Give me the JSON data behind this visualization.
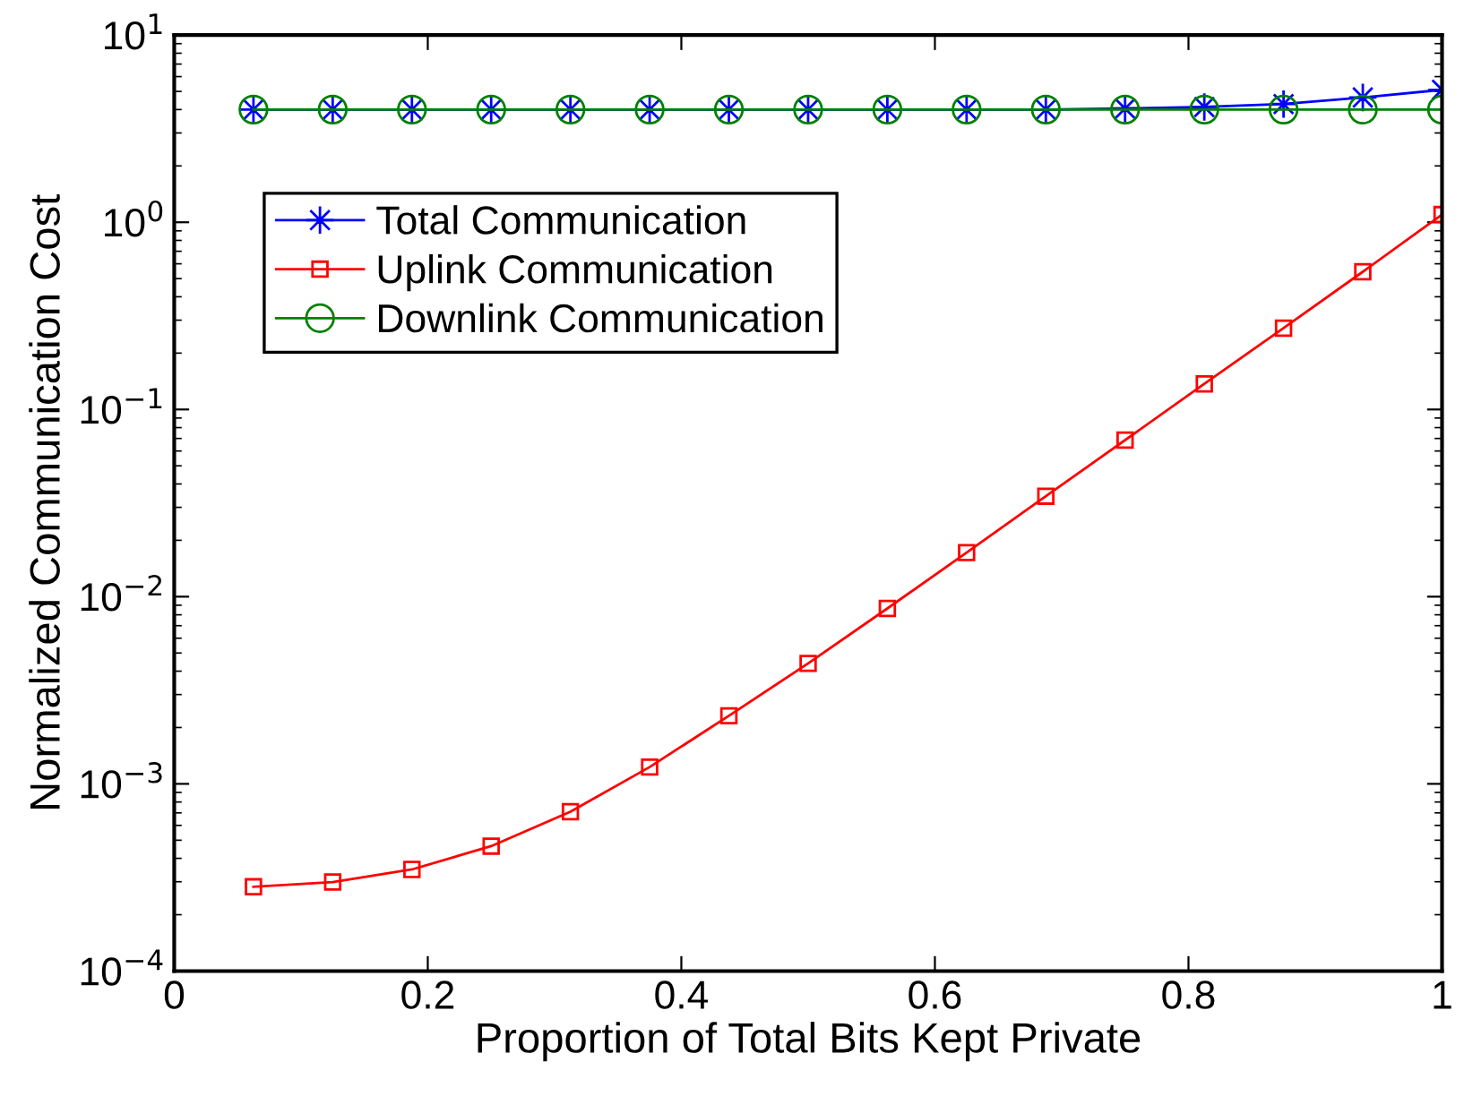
{
  "chart_data": {
    "type": "line",
    "xlabel": "Proportion of Total Bits Kept Private",
    "ylabel": "Normalized Communication Cost",
    "x": [
      0.0625,
      0.125,
      0.1875,
      0.25,
      0.3125,
      0.375,
      0.4375,
      0.5,
      0.5625,
      0.625,
      0.6875,
      0.75,
      0.8125,
      0.875,
      0.9375,
      1.0
    ],
    "series": [
      {
        "name": "Total Communication",
        "color": "#0000ff",
        "marker": "star",
        "values": [
          4,
          4,
          4,
          4,
          4,
          4,
          4,
          4,
          4,
          4,
          4,
          4.05,
          4.13,
          4.28,
          4.64,
          5.1
        ]
      },
      {
        "name": "Uplink Communication",
        "color": "#ff0000",
        "marker": "square",
        "values": [
          0.000282,
          0.000299,
          0.000349,
          0.000465,
          0.00071,
          0.00123,
          0.00231,
          0.0044,
          0.00865,
          0.0172,
          0.0344,
          0.0686,
          0.137,
          0.272,
          0.544,
          1.1
        ]
      },
      {
        "name": "Downlink Communication",
        "color": "#008000",
        "marker": "circle",
        "values": [
          4,
          4,
          4,
          4,
          4,
          4,
          4,
          4,
          4,
          4,
          4,
          4,
          4,
          4,
          4,
          4
        ]
      }
    ],
    "log": "y",
    "xlim": [
      0,
      1
    ],
    "xticks": [
      0,
      0.2,
      0.4,
      0.6,
      0.8,
      1
    ],
    "ylim": [
      0.0001,
      10
    ],
    "yticks": [
      {
        "value": 0.0001,
        "label": "10$^{−4}$"
      },
      {
        "value": 0.001,
        "label": "10$^{−3}$"
      },
      {
        "value": 0.01,
        "label": "10$^{−2}$"
      },
      {
        "value": 0.1,
        "label": "10$^{−1}$"
      },
      {
        "value": 1,
        "label": "10$^{0}$"
      },
      {
        "value": 10,
        "label": "10$^{1}$"
      }
    ],
    "grid": false,
    "legend": "top left",
    "line_style": "solid"
  }
}
